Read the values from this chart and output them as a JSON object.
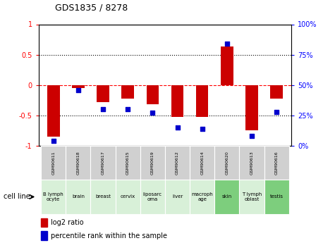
{
  "title": "GDS1835 / 8278",
  "gsm_labels": [
    "GSM90611",
    "GSM90618",
    "GSM90617",
    "GSM90615",
    "GSM90619",
    "GSM90612",
    "GSM90614",
    "GSM90620",
    "GSM90613",
    "GSM90616"
  ],
  "cell_labels": [
    "B lymph\nocyte",
    "brain",
    "breast",
    "cervix",
    "liposarc\noma",
    "liver",
    "macroph\nage",
    "skin",
    "T lymph\noblast",
    "testis"
  ],
  "cell_bg_colors": [
    "#d8f0d8",
    "#d8f0d8",
    "#d8f0d8",
    "#d8f0d8",
    "#d8f0d8",
    "#d8f0d8",
    "#d8f0d8",
    "#7dce7d",
    "#d8f0d8",
    "#7dce7d"
  ],
  "log2_ratio": [
    -0.85,
    -0.05,
    -0.28,
    -0.22,
    -0.32,
    -0.52,
    -0.52,
    0.64,
    -0.75,
    -0.22
  ],
  "percentile_rank": [
    4,
    46,
    30,
    30,
    27,
    15,
    14,
    84,
    8,
    28
  ],
  "bar_color": "#cc0000",
  "dot_color": "#0000cc",
  "left_ylim": [
    -1,
    1
  ],
  "right_ylim": [
    0,
    100
  ],
  "left_yticks": [
    -1,
    -0.5,
    0,
    0.5,
    1
  ],
  "right_yticks": [
    0,
    25,
    50,
    75,
    100
  ],
  "left_yticklabels": [
    "-1",
    "-0.5",
    "0",
    "0.5",
    "1"
  ],
  "right_yticklabels": [
    "0%",
    "25%",
    "50%",
    "75%",
    "100%"
  ],
  "bar_width": 0.5,
  "legend_red_label": "log2 ratio",
  "legend_blue_label": "percentile rank within the sample",
  "cell_line_label": "cell line",
  "gsm_bg_color": "#d0d0d0"
}
